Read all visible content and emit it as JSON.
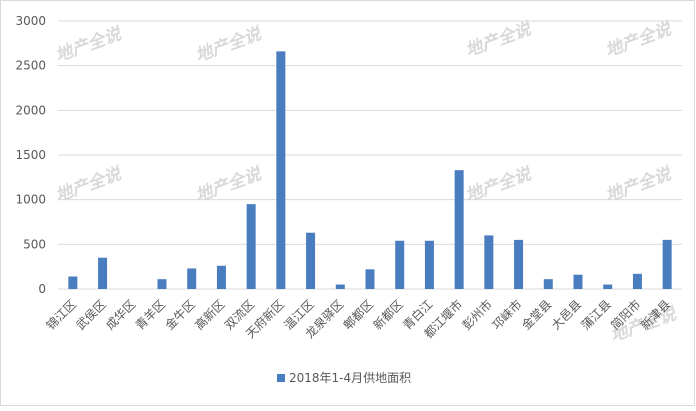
{
  "chart_data": {
    "type": "bar",
    "categories": [
      "锦江区",
      "武侯区",
      "成华区",
      "青羊区",
      "金牛区",
      "高新区",
      "双流区",
      "天府新区",
      "温江区",
      "龙泉驿区",
      "郫都区",
      "新都区",
      "青白江",
      "都江堰市",
      "彭州市",
      "邛崃市",
      "金堂县",
      "大邑县",
      "蒲江县",
      "简阳市",
      "新津县"
    ],
    "series": [
      {
        "name": "2018年1-4月供地面积",
        "color": "#4a7cc0",
        "values": [
          140,
          350,
          0,
          110,
          230,
          260,
          950,
          2660,
          630,
          50,
          220,
          540,
          540,
          1330,
          600,
          550,
          110,
          160,
          50,
          170,
          550
        ]
      }
    ],
    "ylim": [
      0,
      3000
    ],
    "yticks": [
      0,
      500,
      1000,
      1500,
      2000,
      2500,
      3000
    ],
    "grid": true,
    "legend": "bottom",
    "watermark": "地产全说"
  }
}
